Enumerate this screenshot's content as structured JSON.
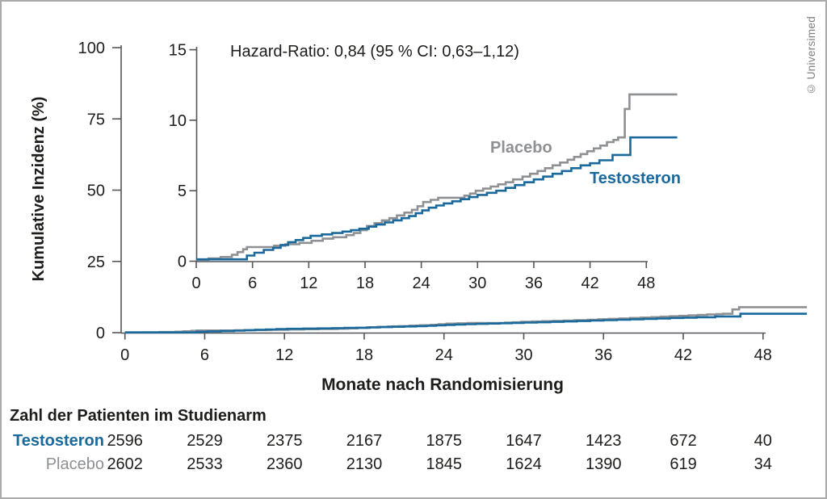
{
  "page": {
    "copyright": "© Universimed",
    "background": "#ffffff",
    "border_color": "#ababab"
  },
  "colors": {
    "placebo": "#8e9093",
    "testosterone": "#1a699c",
    "axis": "#55565a",
    "text": "#1d1d1b"
  },
  "chart_data": {
    "type": "line",
    "subtype": "step-cumulative-incidence",
    "annotation": "Hazard-Ratio: 0,84 (95 % CI: 0,63–1,12)",
    "xlabel": "Monate nach Randomisierung",
    "ylabel": "Kumulative Inzidenz (%)",
    "grid": false,
    "main_plot": {
      "xlim": [
        0,
        51.5
      ],
      "ylim": [
        0,
        100
      ],
      "x_ticks": [
        0,
        6,
        12,
        18,
        24,
        30,
        36,
        42,
        48
      ],
      "y_ticks": [
        0,
        25,
        50,
        75,
        100
      ]
    },
    "inset_plot": {
      "xlim": [
        0,
        51.5
      ],
      "ylim": [
        0,
        15
      ],
      "x_ticks": [
        0,
        6,
        12,
        18,
        24,
        30,
        36,
        42,
        48
      ],
      "y_ticks": [
        0,
        5,
        10,
        15
      ]
    },
    "series": [
      {
        "name": "Placebo",
        "color": "#8e9093",
        "final_value_pct": 11.83,
        "points": [
          [
            0,
            0.1
          ],
          [
            1.3,
            0.2
          ],
          [
            2.6,
            0.3
          ],
          [
            3.8,
            0.45
          ],
          [
            4.4,
            0.65
          ],
          [
            5.0,
            0.85
          ],
          [
            5.4,
            1.0
          ],
          [
            8.3,
            1.1
          ],
          [
            9.5,
            1.2
          ],
          [
            11,
            1.3
          ],
          [
            12.3,
            1.45
          ],
          [
            13.5,
            1.6
          ],
          [
            14.6,
            1.7
          ],
          [
            16,
            1.85
          ],
          [
            16.8,
            2.0
          ],
          [
            17.5,
            2.2
          ],
          [
            18.2,
            2.5
          ],
          [
            19,
            2.7
          ],
          [
            19.8,
            2.9
          ],
          [
            20.6,
            3.05
          ],
          [
            21.4,
            3.25
          ],
          [
            22.2,
            3.45
          ],
          [
            23,
            3.65
          ],
          [
            23.6,
            3.9
          ],
          [
            24.2,
            4.2
          ],
          [
            25,
            4.35
          ],
          [
            25.8,
            4.5
          ],
          [
            28.6,
            4.65
          ],
          [
            29.2,
            4.8
          ],
          [
            29.8,
            5.0
          ],
          [
            30.6,
            5.15
          ],
          [
            31.4,
            5.3
          ],
          [
            32.2,
            5.45
          ],
          [
            33,
            5.6
          ],
          [
            33.8,
            5.8
          ],
          [
            34.8,
            6.0
          ],
          [
            35.6,
            6.2
          ],
          [
            36.4,
            6.4
          ],
          [
            37.2,
            6.6
          ],
          [
            38,
            6.8
          ],
          [
            38.8,
            7.0
          ],
          [
            39.6,
            7.2
          ],
          [
            40.3,
            7.4
          ],
          [
            41,
            7.6
          ],
          [
            41.7,
            7.8
          ],
          [
            42.4,
            8.0
          ],
          [
            43.1,
            8.2
          ],
          [
            43.8,
            8.45
          ],
          [
            44.5,
            8.6
          ],
          [
            45,
            8.78
          ],
          [
            45.7,
            10.8
          ],
          [
            46.2,
            11.83
          ]
        ]
      },
      {
        "name": "Testosteron",
        "color": "#1a699c",
        "final_value_pct": 8.78,
        "points": [
          [
            0,
            0.13
          ],
          [
            5.4,
            0.4
          ],
          [
            6.2,
            0.6
          ],
          [
            7.2,
            0.8
          ],
          [
            8.2,
            0.95
          ],
          [
            9,
            1.15
          ],
          [
            9.8,
            1.35
          ],
          [
            10.6,
            1.5
          ],
          [
            11.4,
            1.65
          ],
          [
            12.2,
            1.8
          ],
          [
            13.4,
            1.9
          ],
          [
            14.5,
            2.0
          ],
          [
            15.6,
            2.1
          ],
          [
            16.5,
            2.2
          ],
          [
            17.4,
            2.3
          ],
          [
            18.4,
            2.45
          ],
          [
            19.2,
            2.6
          ],
          [
            20.1,
            2.75
          ],
          [
            21,
            2.9
          ],
          [
            21.9,
            3.05
          ],
          [
            22.7,
            3.2
          ],
          [
            23.4,
            3.4
          ],
          [
            24.1,
            3.6
          ],
          [
            24.8,
            3.8
          ],
          [
            25.6,
            3.95
          ],
          [
            26.4,
            4.1
          ],
          [
            27.3,
            4.25
          ],
          [
            28.2,
            4.4
          ],
          [
            29.1,
            4.55
          ],
          [
            30,
            4.7
          ],
          [
            31,
            4.85
          ],
          [
            32,
            5.0
          ],
          [
            33,
            5.2
          ],
          [
            34,
            5.4
          ],
          [
            35,
            5.6
          ],
          [
            36,
            5.8
          ],
          [
            37,
            6.0
          ],
          [
            38,
            6.2
          ],
          [
            39,
            6.4
          ],
          [
            40,
            6.6
          ],
          [
            41,
            6.8
          ],
          [
            42,
            6.95
          ],
          [
            43,
            7.16
          ],
          [
            44.4,
            7.54
          ],
          [
            46.3,
            8.78
          ]
        ]
      }
    ]
  },
  "risk_table": {
    "title": "Zahl der Patienten im Studienarm",
    "time_points": [
      0,
      6,
      12,
      18,
      24,
      30,
      36,
      42,
      48
    ],
    "rows": [
      {
        "label": "Testosteron",
        "color": "#1a699c",
        "bold": true,
        "counts": [
          2596,
          2529,
          2375,
          2167,
          1875,
          1647,
          1423,
          672,
          40
        ]
      },
      {
        "label": "Placebo",
        "color": "#8e9093",
        "bold": false,
        "counts": [
          2602,
          2533,
          2360,
          2130,
          1845,
          1624,
          1390,
          619,
          34
        ]
      }
    ]
  }
}
